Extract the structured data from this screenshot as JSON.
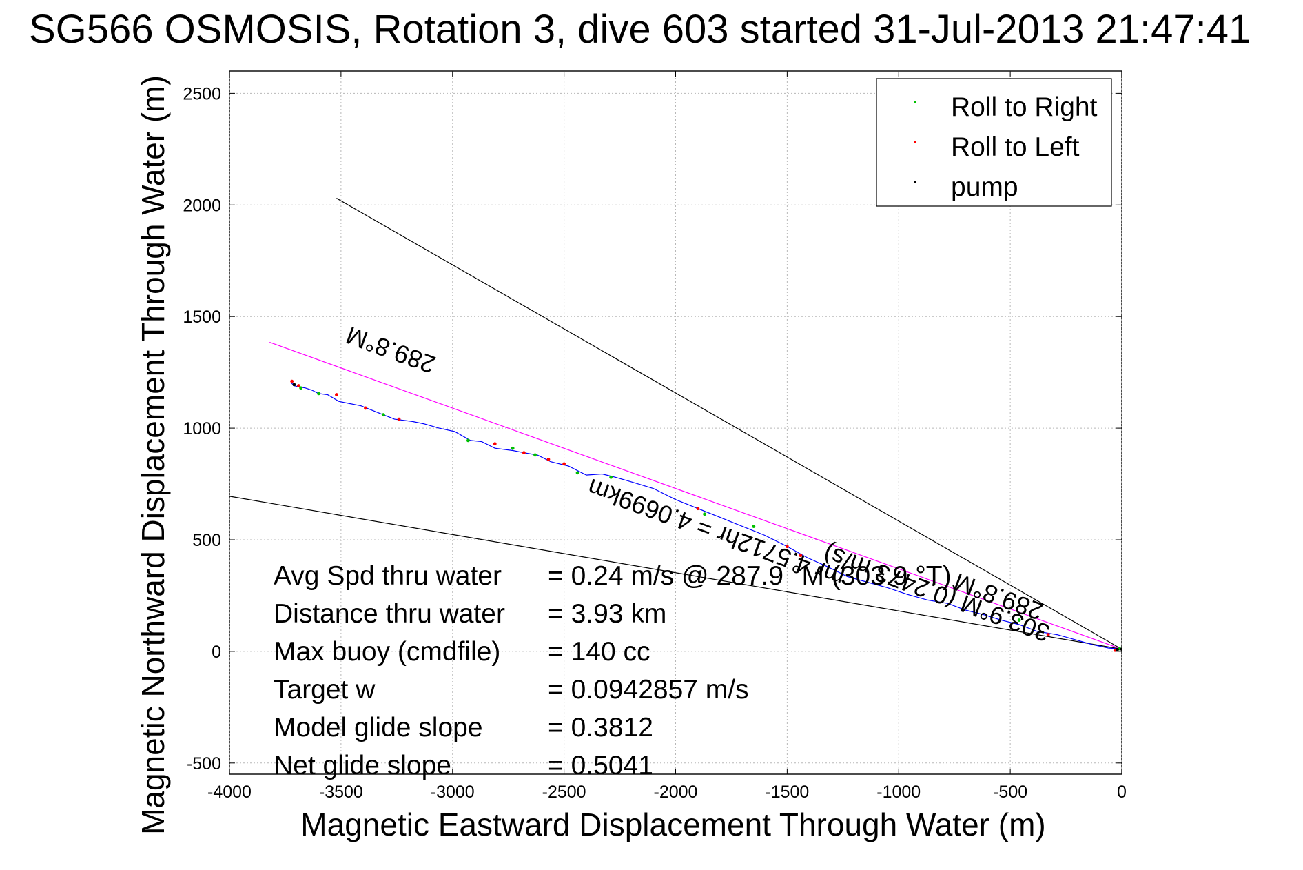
{
  "chart_data": {
    "type": "line",
    "title": "SG566 OSMOSIS, Rotation 3, dive 603 started 31-Jul-2013 21:47:41",
    "xlabel": "Magnetic Eastward Displacement Through Water (m)",
    "ylabel": "Magnetic Northward Displacement Through Water (m)",
    "xlim": [
      -4000,
      0
    ],
    "ylim": [
      -550,
      2600
    ],
    "x_ticks": [
      -4000,
      -3500,
      -3000,
      -2500,
      -2000,
      -1500,
      -1000,
      -500,
      0
    ],
    "y_ticks": [
      -500,
      0,
      500,
      1000,
      1500,
      2000,
      2500
    ],
    "x_tick_labels": [
      "-4000",
      "-3500",
      "-3000",
      "-2500",
      "-2000",
      "-1500",
      "-1000",
      "-500",
      "0"
    ],
    "y_tick_labels": [
      "-500",
      "0",
      "500",
      "1000",
      "1500",
      "2000",
      "2500"
    ],
    "grid": true,
    "legend_position": "top-right",
    "legend": [
      {
        "label": "Roll to Right",
        "color": "#00c000"
      },
      {
        "label": "Roll to Left",
        "color": "#ff0000"
      },
      {
        "label": "pump",
        "color": "#000000"
      }
    ],
    "series": [
      {
        "color": "#0000ff",
        "x": [
          0,
          -60,
          -130,
          -200,
          -290,
          -380,
          -460,
          -540,
          -620,
          -700,
          -780,
          -870,
          -960,
          -1050,
          -1140,
          -1230,
          -1320,
          -1410,
          -1500,
          -1600,
          -1700,
          -1800,
          -1900,
          -2000,
          -2100,
          -2200,
          -2270,
          -2330,
          -2400,
          -2480,
          -2560,
          -2620,
          -2680,
          -2730,
          -2810,
          -2870,
          -2920,
          -2990,
          -3060,
          -3130,
          -3180,
          -3260,
          -3310,
          -3360,
          -3410,
          -3460,
          -3510,
          -3560,
          -3600,
          -3630,
          -3660,
          -3690,
          -3710,
          -3720,
          -3715
        ],
        "y": [
          10,
          15,
          30,
          50,
          75,
          90,
          120,
          140,
          165,
          185,
          215,
          230,
          255,
          285,
          310,
          335,
          380,
          420,
          470,
          520,
          560,
          600,
          640,
          680,
          730,
          760,
          780,
          795,
          790,
          830,
          850,
          880,
          890,
          900,
          910,
          940,
          945,
          985,
          1000,
          1020,
          1030,
          1040,
          1060,
          1080,
          1100,
          1110,
          1120,
          1150,
          1155,
          1170,
          1180,
          1185,
          1190,
          1200,
          1210
        ]
      }
    ],
    "markers": {
      "roll_right": {
        "x": [
          -10,
          -460,
          -1650,
          -1870,
          -2290,
          -2440,
          -2630,
          -2730,
          -2930,
          -3310,
          -3600,
          -3680
        ],
        "y": [
          12,
          140,
          560,
          615,
          780,
          800,
          880,
          910,
          945,
          1060,
          1155,
          1180
        ]
      },
      "roll_left": {
        "x": [
          -30,
          -330,
          -1440,
          -1500,
          -1900,
          -2500,
          -2570,
          -2680,
          -2810,
          -3240,
          -3390,
          -3520,
          -3690,
          -3720
        ],
        "y": [
          5,
          75,
          430,
          470,
          640,
          840,
          860,
          890,
          930,
          1040,
          1090,
          1150,
          1190,
          1210
        ]
      },
      "pump": {
        "x": [
          0,
          -20,
          -3710
        ],
        "y": [
          10,
          8,
          1195
        ]
      }
    },
    "reference_lines": [
      {
        "color": "#000000",
        "x": [
          0,
          -3520
        ],
        "y": [
          10,
          2030
        ]
      },
      {
        "color": "#000000",
        "x": [
          0,
          -4000
        ],
        "y": [
          10,
          695
        ]
      },
      {
        "color": "#ff00ff",
        "x": [
          0,
          -3820
        ],
        "y": [
          10,
          1385
        ]
      }
    ],
    "annotations": {
      "heading_label": "289.8°M",
      "heading_label_2": "289.8°M",
      "leg_label": "303.9°M (0.2473 m/s)",
      "eta_label": "mr 4.5712hr = 4.0699km"
    },
    "stats": [
      {
        "name": "Avg Spd thru water",
        "value": "=  0.24 m/s @ 287.9 °M (303.9 °T)"
      },
      {
        "name": "Distance thru water",
        "value": "=  3.93 km"
      },
      {
        "name": "Max buoy (cmdfile)",
        "value": "= 140 cc"
      },
      {
        "name": "Target w",
        "value": "= 0.0942857 m/s"
      },
      {
        "name": "Model glide slope",
        "value": "= 0.3812"
      },
      {
        "name": "Net glide slope",
        "value": "= 0.5041"
      }
    ]
  }
}
